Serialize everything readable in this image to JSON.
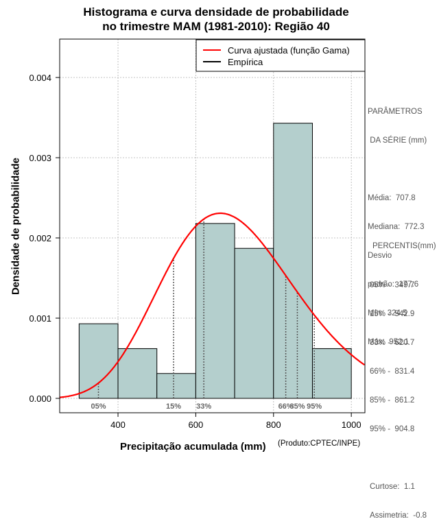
{
  "chart_data": {
    "type": "bar",
    "title_line1": "Histograma e curva densidade de probabilidade",
    "title_line2": "no trimestre MAM (1981-2010): Região 40",
    "xlabel": "Precipitação acumulada (mm)",
    "ylabel": "Densidade de probabilidade",
    "credit": "(Produto:CPTEC/INPE)",
    "xlim": [
      250,
      1035
    ],
    "ylim": [
      0,
      0.0045
    ],
    "x_ticks": [
      400,
      600,
      800,
      1000
    ],
    "y_ticks": [
      "0.000",
      "0.001",
      "0.002",
      "0.003",
      "0.004"
    ],
    "y_tick_values": [
      0,
      0.001,
      0.002,
      0.003,
      0.004
    ],
    "grid": true,
    "legend": {
      "position": "top-right",
      "entries": [
        {
          "label": "Curva ajustada (função Gama)",
          "color": "#ff0000"
        },
        {
          "label": "Empírica",
          "color": "#000000"
        }
      ]
    },
    "histogram": {
      "bins": [
        {
          "x0": 300,
          "x1": 400,
          "density": 0.00093
        },
        {
          "x0": 400,
          "x1": 500,
          "density": 0.00062
        },
        {
          "x0": 500,
          "x1": 600,
          "density": 0.00031
        },
        {
          "x0": 600,
          "x1": 700,
          "density": 0.00218
        },
        {
          "x0": 700,
          "x1": 800,
          "density": 0.00187
        },
        {
          "x0": 800,
          "x1": 900,
          "density": 0.00343
        },
        {
          "x0": 900,
          "x1": 1000,
          "density": 0.00062
        }
      ],
      "color": "#b4cfcd"
    },
    "fitted_curve": {
      "distribution": "gamma",
      "mean": 707.8,
      "sd": 177.6,
      "color": "#ff0000"
    },
    "percentile_markers": [
      {
        "label": "05%",
        "value": 349.7
      },
      {
        "label": "15%",
        "value": 542.9
      },
      {
        "label": "33%",
        "value": 620.7
      },
      {
        "label": "66%",
        "value": 831.4
      },
      {
        "label": "85%",
        "value": 861.2
      },
      {
        "label": "95%",
        "value": 904.8
      }
    ]
  },
  "parameters": {
    "heading1": "PARÂMETROS",
    "heading2": " DA SÉRIE (mm)",
    "lines": [
      "Média:  707.8",
      "Mediana:  772.3",
      "Desvio",
      "padrão:  177.6",
      "Mín:  324.5",
      "Máx:  952.1"
    ]
  },
  "percentiles": {
    "heading": "PERCENTIS(mm)",
    "lines": [
      "05% -  349.7",
      "15% -  542.9",
      "33% -  620.7",
      "66% -  831.4",
      "85% -  861.2",
      "95% -  904.8"
    ]
  },
  "shape": {
    "lines": [
      "Curtose:  1.1",
      "Assimetria:  -0.8"
    ]
  }
}
